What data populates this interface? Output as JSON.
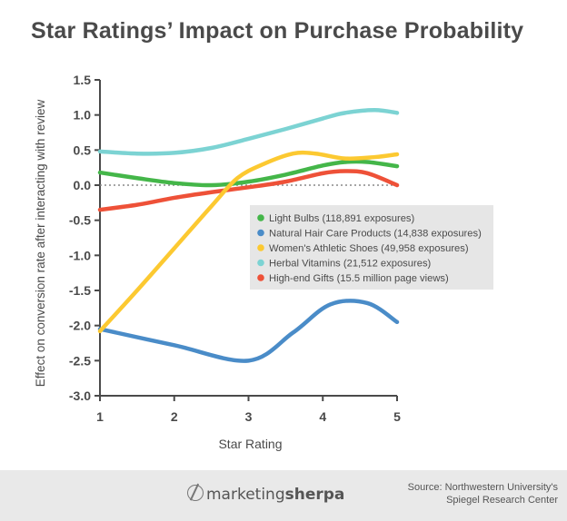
{
  "title": "Star Ratings’ Impact on Purchase Probability",
  "footer": {
    "brand_prefix": "marketing",
    "brand_bold": "sherpa",
    "source_line1": "Source: Northwestern University's",
    "source_line2": "Spiegel Research Center"
  },
  "chart_data": {
    "type": "line",
    "title": "",
    "xlabel": "Star Rating",
    "ylabel": "Effect on conversion rate after interacting with review",
    "xlim": [
      1,
      5
    ],
    "ylim": [
      -3.0,
      1.5
    ],
    "xticks": [
      "1",
      "2",
      "3",
      "4",
      "5"
    ],
    "yticks": [
      "1.5",
      "1.0",
      "0.5",
      "0.0",
      "-0.5",
      "-1.0",
      "-1.5",
      "-2.0",
      "-2.5",
      "-3.0"
    ],
    "grid": false,
    "zero_line": "dotted",
    "legend_position": "center-right",
    "series": [
      {
        "name": "Light Bulbs (118,891 exposures)",
        "color": "#44b649",
        "x": [
          1,
          1.5,
          2,
          2.5,
          3,
          3.5,
          4,
          4.3,
          4.6,
          5
        ],
        "y": [
          0.18,
          0.1,
          0.03,
          0.0,
          0.05,
          0.15,
          0.28,
          0.33,
          0.33,
          0.27
        ]
      },
      {
        "name": "Natural Hair Care Products (14,838 exposures)",
        "color": "#4a8cc8",
        "x": [
          1,
          2,
          3,
          3.6,
          4.1,
          4.6,
          5
        ],
        "y": [
          -2.05,
          -2.28,
          -2.5,
          -2.1,
          -1.7,
          -1.68,
          -1.95
        ]
      },
      {
        "name": "Women's Athletic Shoes (49,958 exposures)",
        "color": "#fcc931",
        "x": [
          1,
          1.5,
          2,
          2.5,
          2.85,
          3.2,
          3.6,
          3.9,
          4.3,
          4.7,
          5
        ],
        "y": [
          -2.08,
          -1.5,
          -0.9,
          -0.3,
          0.1,
          0.3,
          0.45,
          0.45,
          0.38,
          0.4,
          0.44
        ]
      },
      {
        "name": "Herbal Vitamins (21,512 exposures)",
        "color": "#7cd3d3",
        "x": [
          1,
          1.5,
          2,
          2.5,
          3,
          3.5,
          4,
          4.3,
          4.7,
          5
        ],
        "y": [
          0.48,
          0.45,
          0.46,
          0.53,
          0.66,
          0.8,
          0.95,
          1.03,
          1.07,
          1.03
        ]
      },
      {
        "name": "High-end Gifts (15.5 million page views)",
        "color": "#ee5138",
        "x": [
          1,
          1.5,
          2,
          2.5,
          3,
          3.5,
          4,
          4.3,
          4.6,
          5
        ],
        "y": [
          -0.35,
          -0.28,
          -0.18,
          -0.1,
          -0.03,
          0.05,
          0.17,
          0.2,
          0.17,
          0.0
        ]
      }
    ]
  }
}
